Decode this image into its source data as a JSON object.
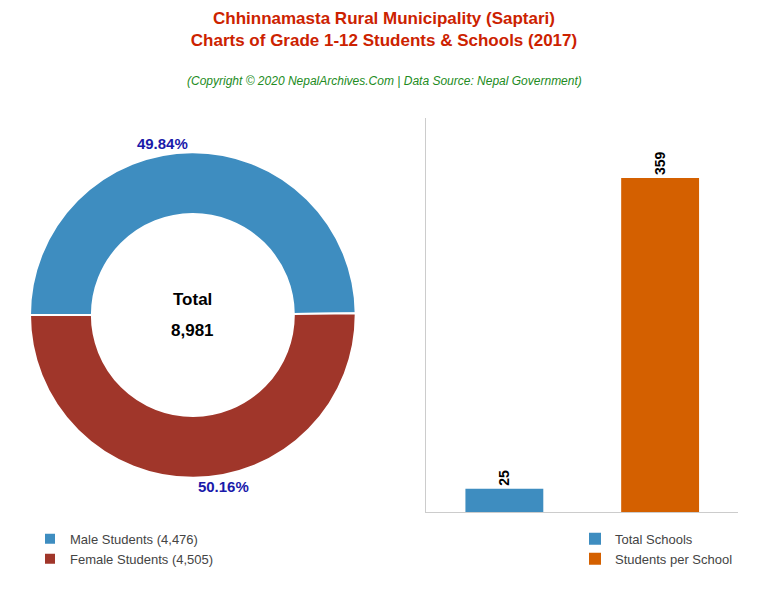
{
  "chart_data": [
    {
      "type": "pie",
      "title": "Chhinnamasta Rural Municipality (Saptari)\nCharts of Grade 1-12 Students & Schools (2017)",
      "subtitle": "(Copyright © 2020 NepalArchives.Com | Data Source: Nepal Government)",
      "categories": [
        "Male Students (4,476)",
        "Female Students (4,505)"
      ],
      "values": [
        49.84,
        50.16
      ],
      "value_labels": [
        "49.84%",
        "50.16%"
      ],
      "data_labels": true,
      "colors": [
        "#3E8DC0",
        "#A0362A"
      ],
      "annotations": [
        "Total",
        "8,981"
      ],
      "legend": "lower left"
    },
    {
      "type": "bar",
      "categories": [
        null,
        null
      ],
      "series": [
        {
          "name": "Total Schools",
          "color": "#3E8DC0",
          "values": [
            25,
            null
          ]
        },
        {
          "name": "Students per School",
          "color": "#D46000",
          "values": [
            null,
            359
          ]
        }
      ],
      "ylim": [
        0,
        423.62
      ],
      "data_labels": true,
      "tick_labels": false,
      "grid": false,
      "legend": "lower right"
    }
  ]
}
